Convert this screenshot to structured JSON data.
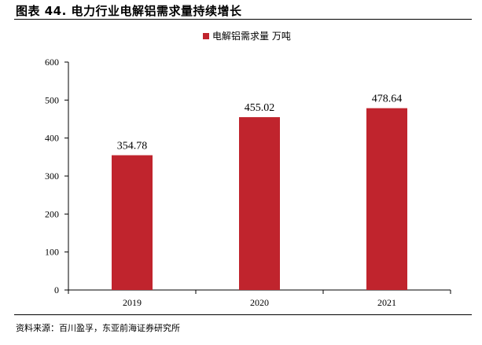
{
  "figure": {
    "title": "图表 44. 电力行业电解铝需求量持续增长",
    "source": "资料来源：百川盈孚，东亚前海证券研究所"
  },
  "chart_data": {
    "type": "bar",
    "categories": [
      "2019",
      "2020",
      "2021"
    ],
    "series": [
      {
        "name": "电解铝需求量 万吨",
        "values": [
          354.78,
          455.02,
          478.64
        ],
        "color": "#c0242d"
      }
    ],
    "data_labels": [
      "354.78",
      "455.02",
      "478.64"
    ],
    "y_ticks": [
      "0",
      "100",
      "200",
      "300",
      "400",
      "500",
      "600"
    ],
    "ylim": [
      0,
      600
    ],
    "grid": false,
    "legend_position": "top-center",
    "title": "",
    "xlabel": "",
    "ylabel": ""
  }
}
